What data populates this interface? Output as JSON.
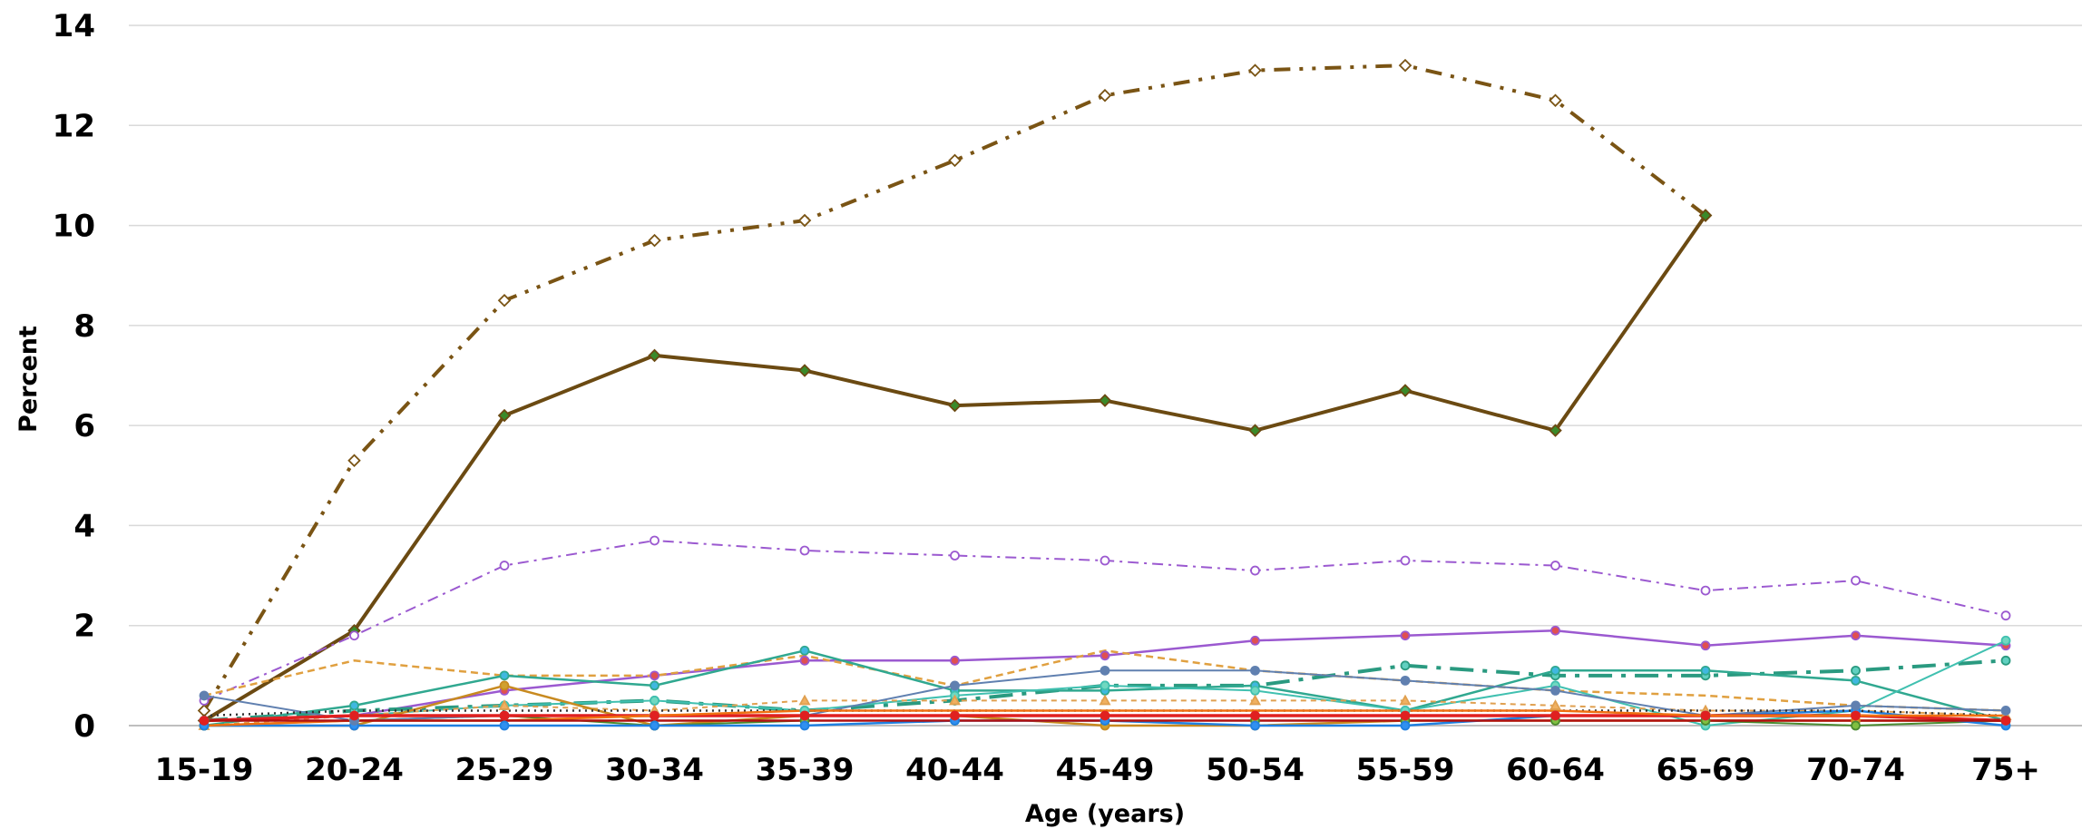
{
  "chart_data": {
    "type": "line",
    "title": "",
    "xlabel": "Age (years)",
    "ylabel": "Percent",
    "ylim": [
      0,
      14
    ],
    "yticks": [
      0,
      2,
      4,
      6,
      8,
      10,
      12,
      14
    ],
    "grid": "horizontal",
    "legend": "none",
    "categories": [
      "15-19",
      "20-24",
      "25-29",
      "30-34",
      "35-39",
      "40-44",
      "45-49",
      "50-54",
      "55-59",
      "60-64",
      "65-69",
      "70-74",
      "75+"
    ],
    "series": [
      {
        "color": "#7a5414",
        "dash": "18,10,4,10,4,10",
        "width": 4,
        "marker": "diamond",
        "fill": "#ffffff",
        "values": [
          0.3,
          5.3,
          8.5,
          9.7,
          10.1,
          11.3,
          12.6,
          13.1,
          13.2,
          12.5,
          10.2,
          null,
          null
        ]
      },
      {
        "color": "#6b4a12",
        "dash": "",
        "width": 4,
        "marker": "diamond",
        "fill": "#3a8a2a",
        "values": [
          0.1,
          1.9,
          6.2,
          7.4,
          7.1,
          6.4,
          6.5,
          5.9,
          6.7,
          5.9,
          10.2,
          null,
          null
        ]
      },
      {
        "color": "#9b59d0",
        "dash": "12,6,3,6",
        "width": 2,
        "marker": "circle",
        "fill": "#ffffff",
        "values": [
          0.5,
          1.8,
          3.2,
          3.7,
          3.5,
          3.4,
          3.3,
          3.1,
          3.3,
          3.2,
          2.7,
          2.9,
          2.2
        ]
      },
      {
        "color": "#9b59d0",
        "dash": "",
        "width": 2.5,
        "marker": "circle",
        "fill": "#e05050",
        "values": [
          0.1,
          0.2,
          0.7,
          1.0,
          1.3,
          1.3,
          1.4,
          1.7,
          1.8,
          1.9,
          1.6,
          1.8,
          1.6
        ]
      },
      {
        "color": "#e0a040",
        "dash": "8,5",
        "width": 2.5,
        "marker": "none",
        "fill": "#e0a040",
        "values": [
          0.6,
          1.3,
          1.0,
          1.0,
          1.4,
          0.8,
          1.5,
          1.1,
          0.9,
          0.7,
          0.6,
          0.4,
          0.3
        ]
      },
      {
        "color": "#2a9a80",
        "dash": "26,10,5,10",
        "width": 4,
        "marker": "circle",
        "fill": "#60d0c0",
        "values": [
          0.1,
          0.3,
          0.4,
          0.5,
          0.3,
          0.5,
          0.8,
          0.8,
          1.2,
          1.0,
          1.0,
          1.1,
          1.3
        ]
      },
      {
        "color": "#30a890",
        "dash": "",
        "width": 2.5,
        "marker": "circle",
        "fill": "#40b8e0",
        "values": [
          0.0,
          0.4,
          1.0,
          0.8,
          1.5,
          0.7,
          0.7,
          0.8,
          0.3,
          1.1,
          1.1,
          0.9,
          0.1
        ]
      },
      {
        "color": "#40c0b0",
        "dash": "",
        "width": 2,
        "marker": "circle",
        "fill": "#70d8c0",
        "values": [
          0.1,
          0.2,
          0.4,
          0.5,
          0.3,
          0.6,
          0.8,
          0.7,
          0.3,
          0.8,
          0.0,
          0.3,
          1.7
        ]
      },
      {
        "color": "#e0a050",
        "dash": "6,5",
        "width": 2,
        "marker": "triangle",
        "fill": "#f0b060",
        "values": [
          0.0,
          0.2,
          0.4,
          0.3,
          0.5,
          0.5,
          0.5,
          0.5,
          0.5,
          0.4,
          0.3,
          0.3,
          0.2
        ]
      },
      {
        "color": "#c88a20",
        "dash": "",
        "width": 2.5,
        "marker": "circle",
        "fill": "#d0a030",
        "values": [
          0.0,
          0.0,
          0.8,
          0.0,
          0.2,
          0.2,
          0.0,
          0.0,
          0.1,
          0.1,
          0.1,
          0.1,
          0.1
        ]
      },
      {
        "color": "#4a8a30",
        "dash": "",
        "width": 2,
        "marker": "circle",
        "fill": "#80c040",
        "values": [
          0.0,
          0.1,
          0.2,
          0.0,
          0.1,
          0.1,
          0.1,
          0.1,
          0.1,
          0.1,
          0.1,
          0.0,
          0.1
        ]
      },
      {
        "color": "#2080e0",
        "dash": "",
        "width": 2.5,
        "marker": "circle",
        "fill": "#3090f0",
        "values": [
          0.0,
          0.0,
          0.0,
          0.0,
          0.0,
          0.1,
          0.1,
          0.0,
          0.0,
          0.2,
          0.2,
          0.3,
          0.0
        ]
      },
      {
        "color": "#6080b0",
        "dash": "",
        "width": 2,
        "marker": "circle",
        "fill": "#6080b0",
        "values": [
          0.6,
          0.1,
          0.2,
          0.2,
          0.2,
          0.8,
          1.1,
          1.1,
          0.9,
          0.7,
          0.2,
          0.4,
          0.3
        ]
      },
      {
        "color": "#303030",
        "dash": "2,5",
        "width": 2.5,
        "marker": "none",
        "fill": "#303030",
        "values": [
          0.2,
          0.3,
          0.3,
          0.3,
          0.3,
          0.3,
          0.3,
          0.3,
          0.3,
          0.3,
          0.3,
          0.3,
          0.2
        ]
      },
      {
        "color": "#e02020",
        "dash": "",
        "width": 3.5,
        "marker": "circle",
        "fill": "#e02020",
        "values": [
          0.1,
          0.2,
          0.2,
          0.2,
          0.2,
          0.2,
          0.2,
          0.2,
          0.2,
          0.2,
          0.2,
          0.2,
          0.1
        ]
      },
      {
        "color": "#f07010",
        "dash": "",
        "width": 2.5,
        "marker": "none",
        "fill": "#f07010",
        "values": [
          0.0,
          0.1,
          0.1,
          0.2,
          0.3,
          0.3,
          0.3,
          0.3,
          0.3,
          0.3,
          0.2,
          0.2,
          0.2
        ]
      },
      {
        "color": "#b01010",
        "dash": "",
        "width": 2.5,
        "marker": "none",
        "fill": "#b01010",
        "values": [
          0.1,
          0.1,
          0.1,
          0.1,
          0.1,
          0.1,
          0.1,
          0.1,
          0.1,
          0.1,
          0.1,
          0.1,
          0.1
        ]
      }
    ]
  }
}
